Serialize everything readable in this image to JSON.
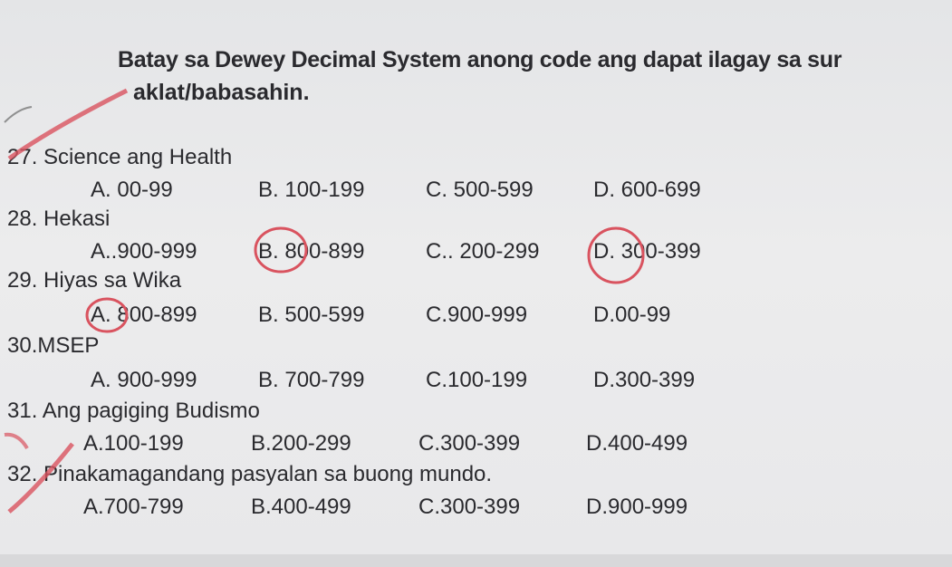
{
  "instructions": {
    "line1": "Batay sa Dewey Decimal System  anong code ang dapat ilagay sa sur",
    "line2": "aklat/babasahin."
  },
  "questions": [
    {
      "label": "27. Science ang Health",
      "options": [
        "A. 00-99",
        "B. 100-199",
        "C. 500-599",
        "D. 600-699"
      ]
    },
    {
      "label": "28. Hekasi",
      "options": [
        "A..900-999",
        "B. 800-899",
        "C.. 200-299",
        "D. 300-399"
      ]
    },
    {
      "label": "29. Hiyas sa Wika",
      "options": [
        "A. 800-899",
        "B. 500-599",
        "C.900-999",
        "D.00-99"
      ]
    },
    {
      "label": "30.MSEP",
      "options": [
        "A. 900-999",
        "B. 700-799",
        "C.100-199",
        "D.300-399"
      ]
    },
    {
      "label": "31. Ang pagiging Budismo",
      "options": [
        "A.100-199",
        "B.200-299",
        "C.300-399",
        "D.400-499"
      ]
    },
    {
      "label": "32. Pinakamagandang pasyalan sa buong mundo.",
      "options": [
        "A.700-799",
        "B.400-499",
        "C.300-399",
        "D.900-999"
      ]
    }
  ],
  "colors": {
    "ink": "#2a2a2e",
    "pen_mark": "#d9535f",
    "paper": "#e9e9eb"
  }
}
